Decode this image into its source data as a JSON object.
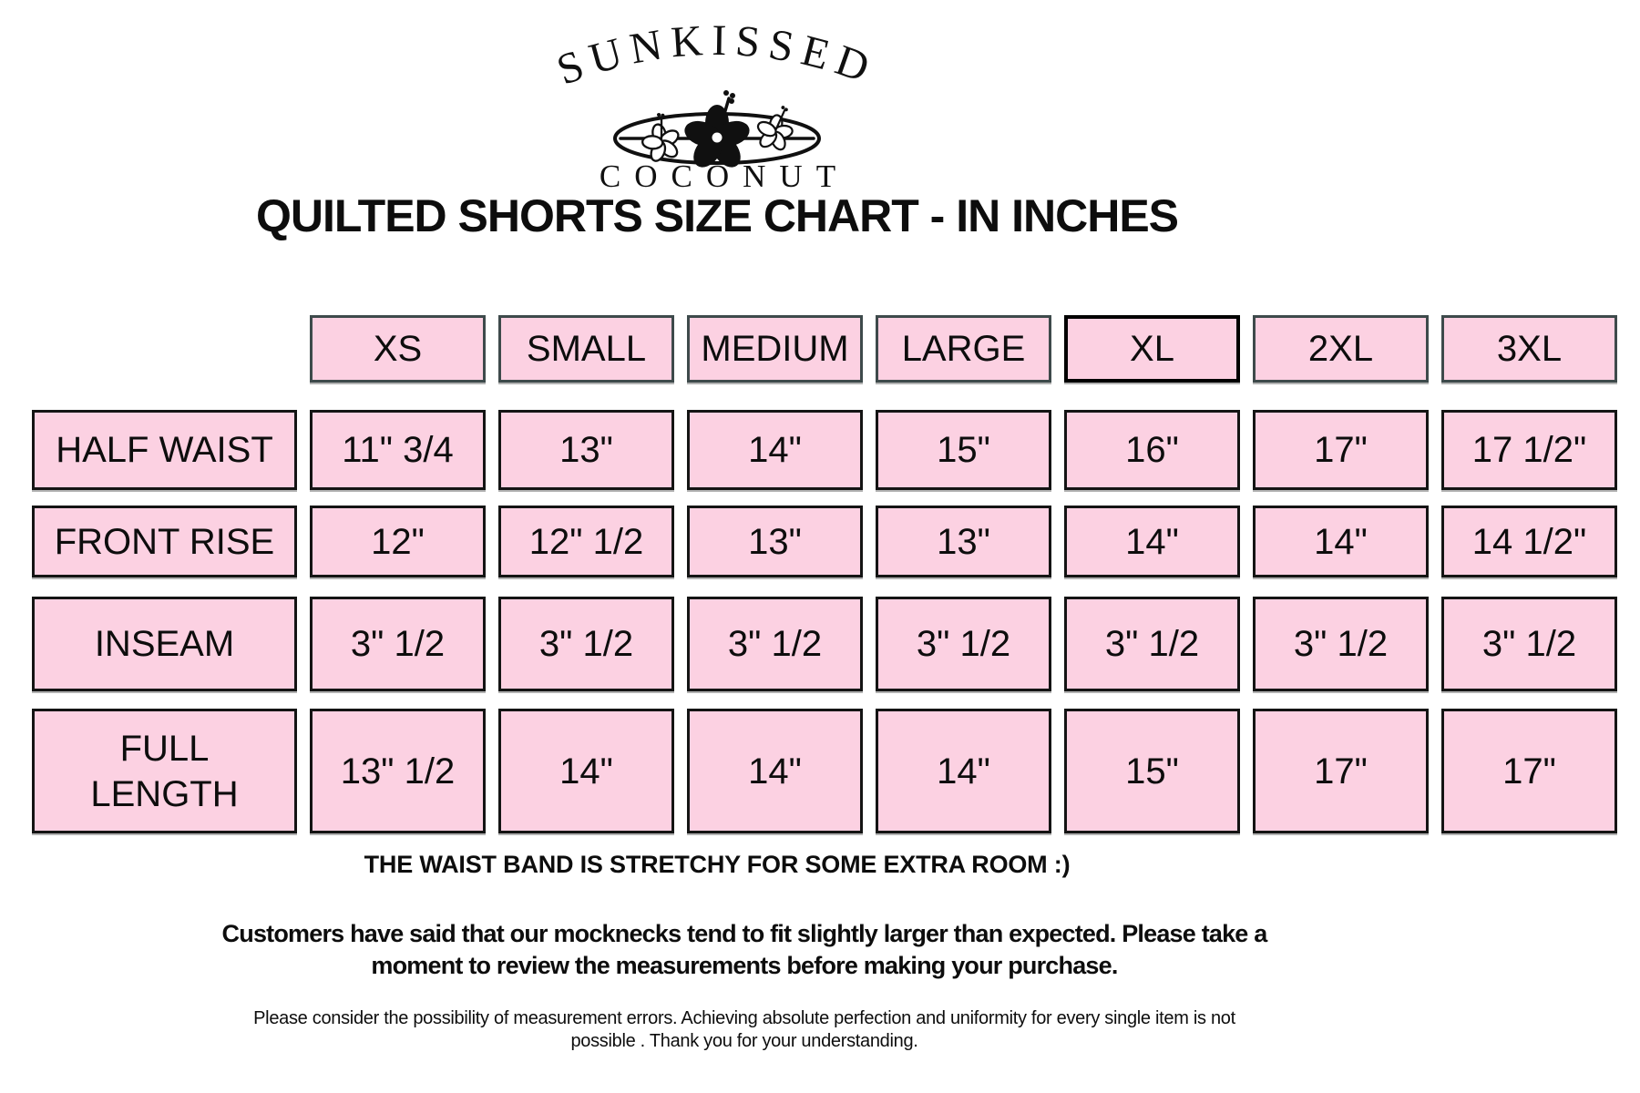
{
  "brand": {
    "name_arc": "SUNKISSED",
    "name_bottom": "COCONUT",
    "logo_motif": "surfboard-with-hibiscus-flowers"
  },
  "title": "QUILTED SHORTS SIZE CHART - IN INCHES",
  "chart_data": {
    "type": "table",
    "title": "QUILTED SHORTS SIZE CHART - IN INCHES",
    "columns": [
      "XS",
      "SMALL",
      "MEDIUM",
      "LARGE",
      "XL",
      "2XL",
      "3XL"
    ],
    "highlighted_column_index": 4,
    "rows": [
      {
        "label": "HALF WAIST",
        "values": [
          "11\" 3/4",
          "13\"",
          "14\"",
          "15\"",
          "16\"",
          "17\"",
          "17 1/2\""
        ]
      },
      {
        "label": "FRONT RISE",
        "values": [
          "12\"",
          "12\" 1/2",
          "13\"",
          "13\"",
          "14\"",
          "14\"",
          "14 1/2\""
        ]
      },
      {
        "label": "INSEAM",
        "values": [
          "3\" 1/2",
          "3\" 1/2",
          "3\" 1/2",
          "3\" 1/2",
          "3\" 1/2",
          "3\" 1/2",
          "3\" 1/2"
        ]
      },
      {
        "label": "FULL\nLENGTH",
        "values": [
          "13\" 1/2",
          "14\"",
          "14\"",
          "14\"",
          "15\"",
          "17\"",
          "17\""
        ]
      }
    ]
  },
  "notes": {
    "stretch": "THE WAIST BAND IS STRETCHY FOR SOME EXTRA ROOM :)",
    "fit_line1": "Customers have said that our mocknecks tend to fit slightly larger than expected. Please take a",
    "fit_line2": "moment to review the measurements before making your purchase.",
    "disclaimer_line1": "Please consider the possibility of measurement errors. Achieving absolute perfection and uniformity for every single item is not",
    "disclaimer_line2": "possible . Thank you for your understanding."
  },
  "colors": {
    "cell_fill": "#fcd1e2",
    "header_border": "#3e4a4b",
    "cell_border": "#141414",
    "highlight_border": "#000000",
    "text": "#0d0d0d",
    "background": "#ffffff"
  }
}
